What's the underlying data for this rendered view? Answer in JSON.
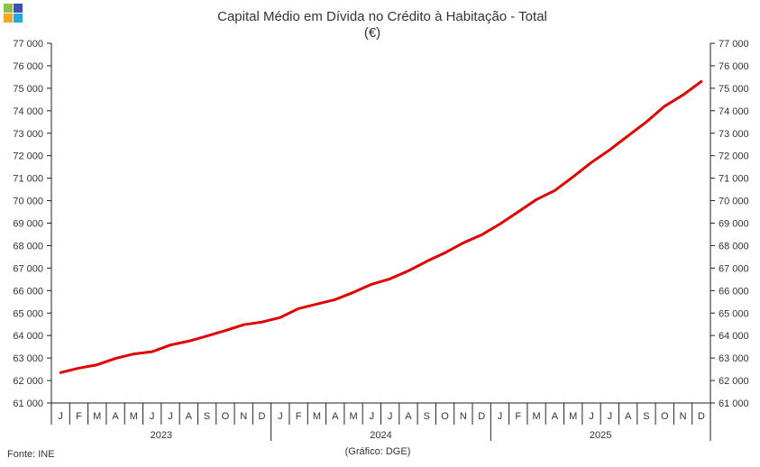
{
  "colors": {
    "line": "#e00000",
    "axis": "#222222",
    "logo_tl": "#8bc34a",
    "logo_tr": "#3f51b5",
    "logo_bl": "#f5a623",
    "logo_br": "#29a8e0"
  },
  "logo": {
    "icon": "ine-logo-icon"
  },
  "source_label": "Fonte: INE",
  "credit_label": "(Gráfico: DGE)",
  "chart_data": {
    "type": "line",
    "title": "Capital Médio em Dívida no Crédito à Habitação - Total",
    "subtitle": "(€)",
    "xlabel": "",
    "ylabel": "",
    "ylim": [
      61000,
      77000
    ],
    "y_ticks": [
      61000,
      62000,
      63000,
      64000,
      65000,
      66000,
      67000,
      68000,
      69000,
      70000,
      71000,
      72000,
      73000,
      74000,
      75000,
      76000,
      77000
    ],
    "y_tick_labels": [
      "61 000",
      "62 000",
      "63 000",
      "64 000",
      "65 000",
      "66 000",
      "67 000",
      "68 000",
      "69 000",
      "70 000",
      "71 000",
      "72 000",
      "73 000",
      "74 000",
      "75 000",
      "76 000",
      "77 000"
    ],
    "y_axes": "left and right",
    "grid": false,
    "legend": "none",
    "years": [
      {
        "label": "2023",
        "months": 12
      },
      {
        "label": "2024",
        "months": 12
      },
      {
        "label": "2025",
        "months": 12
      }
    ],
    "categories": [
      "J",
      "F",
      "M",
      "A",
      "M",
      "J",
      "J",
      "A",
      "S",
      "O",
      "N",
      "D",
      "J",
      "F",
      "M",
      "A",
      "M",
      "J",
      "J",
      "A",
      "S",
      "O",
      "N",
      "D",
      "J",
      "F",
      "M",
      "A",
      "M",
      "J",
      "J",
      "A",
      "S",
      "O",
      "N",
      "D"
    ],
    "series": [
      {
        "values": [
          62350,
          62550,
          62700,
          62980,
          63180,
          63280,
          63580,
          63750,
          63980,
          64220,
          64480,
          64600,
          64800,
          65200,
          65400,
          65600,
          65920,
          66280,
          66520,
          66880,
          67300,
          67680,
          68120,
          68480,
          68960,
          69500,
          70050,
          70450,
          71060,
          71700,
          72260,
          72880,
          73500,
          74200,
          74700,
          75300
        ]
      }
    ]
  }
}
